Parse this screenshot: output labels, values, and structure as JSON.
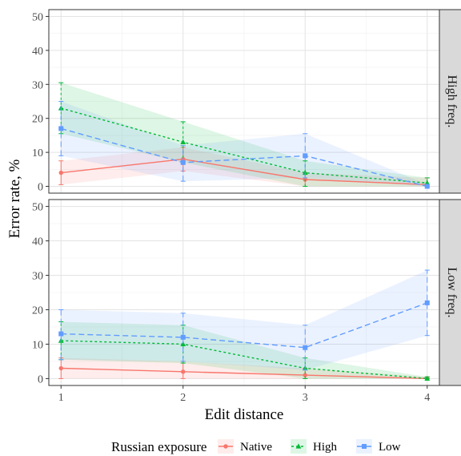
{
  "chart_data": {
    "type": "line",
    "xlabel": "Edit distance",
    "ylabel": "Error rate, %",
    "x": [
      1,
      2,
      3,
      4
    ],
    "x_ticks": [
      "1",
      "2",
      "3",
      "4"
    ],
    "y_ticks": [
      "0",
      "10",
      "20",
      "30",
      "40",
      "50"
    ],
    "xlim": [
      0.9,
      4.1
    ],
    "ylim": [
      -2,
      52
    ],
    "legend": {
      "title": "Russian exposure",
      "position": "bottom"
    },
    "grid": true,
    "facets": [
      {
        "label": "High freq.",
        "series": [
          {
            "name": "Native",
            "values": [
              4,
              8,
              2,
              0.5
            ],
            "lower": [
              0.5,
              4.5,
              0,
              0
            ],
            "upper": [
              7.5,
              11.5,
              4,
              2.5
            ]
          },
          {
            "name": "High",
            "values": [
              23,
              13,
              4,
              1
            ],
            "lower": [
              15.5,
              7,
              0,
              0
            ],
            "upper": [
              30.5,
              19,
              7.5,
              2.5
            ]
          },
          {
            "name": "Low",
            "values": [
              17,
              7,
              9,
              0
            ],
            "lower": [
              9,
              1.5,
              2.5,
              0
            ],
            "upper": [
              25,
              12,
              15.5,
              0.5
            ]
          }
        ]
      },
      {
        "label": "Low freq.",
        "series": [
          {
            "name": "Native",
            "values": [
              3,
              2,
              1,
              0
            ],
            "lower": [
              0,
              0,
              0,
              0
            ],
            "upper": [
              6,
              5,
              3,
              0.5
            ]
          },
          {
            "name": "High",
            "values": [
              11,
              10,
              3,
              0
            ],
            "lower": [
              5.5,
              4.5,
              0,
              0
            ],
            "upper": [
              16.5,
              15.5,
              6,
              0.5
            ]
          },
          {
            "name": "Low",
            "values": [
              13,
              12,
              9,
              22
            ],
            "lower": [
              5.5,
              5,
              2.5,
              12.5
            ],
            "upper": [
              20,
              19,
              15.5,
              31.5
            ]
          }
        ]
      }
    ]
  },
  "colors": {
    "Native": "#F8766D",
    "High": "#00BA38",
    "Low": "#619CFF"
  }
}
